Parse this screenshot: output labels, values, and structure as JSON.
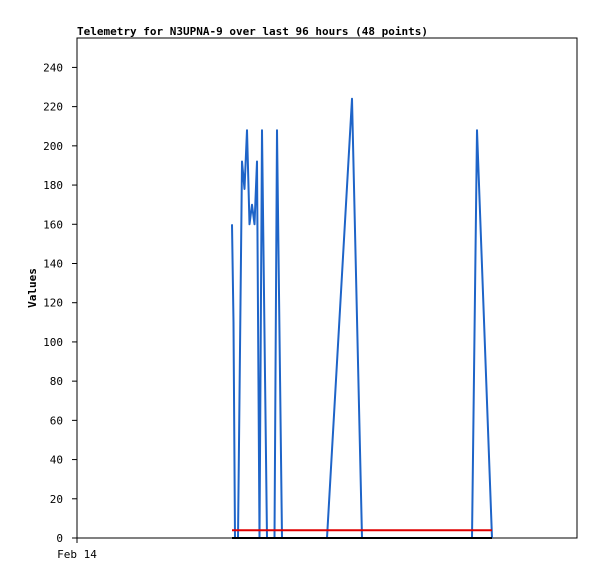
{
  "chart_data": {
    "type": "line",
    "title": "Telemetry for N3UPNA-9 over last 96 hours (48 points)",
    "xlabel": "",
    "ylabel": "Values",
    "x_tick_labels": [
      "Feb 14"
    ],
    "ylim": [
      0,
      255
    ],
    "y_ticks": [
      0,
      20,
      40,
      60,
      80,
      100,
      120,
      140,
      160,
      180,
      200,
      220,
      240
    ],
    "x_range_points": [
      0,
      100
    ],
    "legend": "none",
    "grid": false,
    "series": [
      {
        "color": "#1e64c8",
        "points": [
          [
            31.0,
            160
          ],
          [
            31.3,
            110
          ],
          [
            31.6,
            0
          ],
          [
            31.6,
            0
          ],
          [
            32.1,
            0
          ],
          [
            32.2,
            0
          ],
          [
            33.0,
            192
          ],
          [
            33.5,
            178
          ],
          [
            34.0,
            208
          ],
          [
            34.5,
            160
          ],
          [
            35.0,
            170
          ],
          [
            35.5,
            160
          ],
          [
            36.0,
            192
          ],
          [
            36.5,
            0
          ],
          [
            36.5,
            0
          ],
          [
            37.0,
            208
          ],
          [
            38.0,
            0
          ],
          [
            38.0,
            0
          ],
          [
            39.5,
            0
          ],
          [
            39.5,
            0
          ],
          [
            40.0,
            208
          ],
          [
            41.0,
            0
          ],
          [
            41.0,
            0
          ],
          [
            50.0,
            0
          ],
          [
            50.0,
            0
          ],
          [
            55.0,
            224
          ],
          [
            57.0,
            0
          ],
          [
            57.0,
            0
          ],
          [
            79.0,
            0
          ],
          [
            79.0,
            0
          ],
          [
            80.0,
            208
          ],
          [
            83.0,
            0
          ]
        ]
      },
      {
        "color": "#e00000",
        "points": [
          [
            31.0,
            4
          ],
          [
            83.0,
            4
          ]
        ]
      },
      {
        "color": "#000000",
        "points": [
          [
            31.0,
            0
          ],
          [
            83.0,
            0
          ]
        ]
      }
    ]
  }
}
